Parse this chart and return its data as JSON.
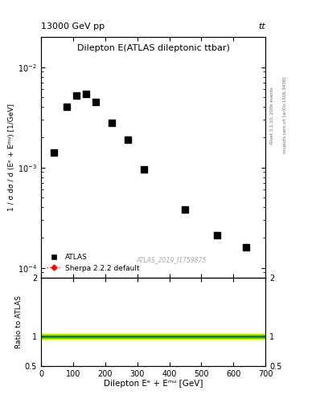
{
  "title": "Dilepton E(ATLAS dileptonic ttbar)",
  "top_left_label": "13000 GeV pp",
  "top_right_label": "tt",
  "ylabel_main": "1 / σ dσ / d (Eᵉ + Eᵐᵘ) [1/GeV]",
  "ylabel_ratio": "Ratio to ATLAS",
  "xlabel": "Dilepton Eᵉ + Eᵐᵘ [GeV]",
  "watermark": "ATLAS_2019_I1759875",
  "right_label1": "Rivet 3.1.10, 200k events",
  "right_label2": "mcplots.cern.ch [arXiv:1306.3436]",
  "data_x": [
    40,
    80,
    110,
    140,
    170,
    220,
    270,
    320,
    450,
    550,
    640
  ],
  "data_y": [
    0.0014,
    0.004,
    0.0052,
    0.0054,
    0.0045,
    0.0028,
    0.0019,
    0.00095,
    0.00038,
    0.00021,
    0.00016
  ],
  "xlim": [
    0,
    700
  ],
  "ylim_main": [
    8e-05,
    0.02
  ],
  "ylim_ratio": [
    0.5,
    2.0
  ],
  "ratio_line_y": 1.0,
  "green_band_low": 0.97,
  "green_band_high": 1.03,
  "yellow_band_low": 0.94,
  "yellow_band_high": 1.06,
  "marker_color": "black",
  "marker_size": 6,
  "sherpa_color": "red",
  "background": "white",
  "ratio_yticks": [
    0.5,
    1.0,
    2.0
  ],
  "ratio_yticklabels": [
    "0.5",
    "1",
    "2"
  ]
}
